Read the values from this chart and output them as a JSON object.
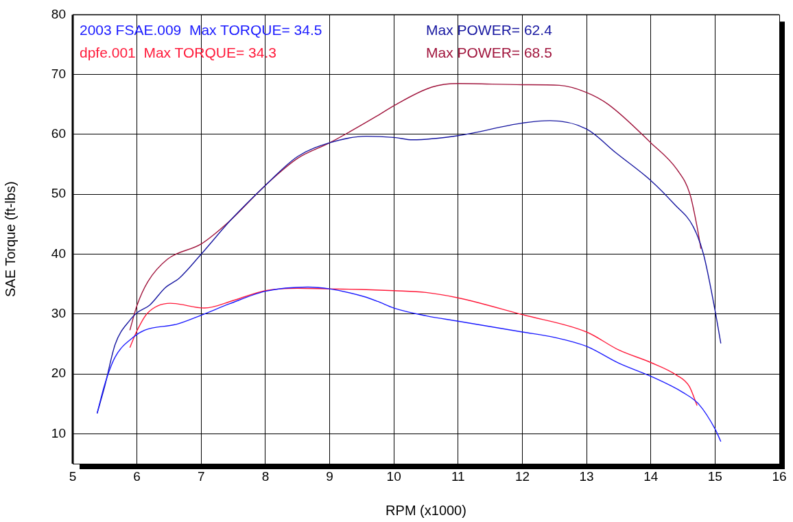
{
  "chart_data": {
    "type": "line",
    "xlabel": "RPM (x1000)",
    "ylabel": "SAE Torque (ft-lbs)",
    "xlim": [
      5,
      16
    ],
    "xticks": [
      5,
      6,
      7,
      8,
      9,
      10,
      11,
      12,
      13,
      14,
      15,
      16
    ],
    "ylim": [
      5,
      80
    ],
    "yticks": [
      10,
      20,
      30,
      40,
      50,
      60,
      70,
      80
    ],
    "grid": true,
    "legend": "top left",
    "marker": "none",
    "line_style": "solid",
    "series": [
      {
        "name": "2003 FSAE.009  Max TORQUE= 34.5",
        "color": "#1a1aff",
        "x": [
          5.38,
          5.5,
          5.66,
          5.94,
          6.12,
          6.62,
          7,
          7.44,
          8,
          8.66,
          9,
          9.54,
          9.75,
          10,
          10.5,
          11,
          12,
          12.5,
          13,
          13.5,
          14,
          14.5,
          14.75,
          15,
          15.09
        ],
        "values": [
          13.4,
          18.3,
          22.8,
          26.1,
          27.3,
          28.3,
          29.8,
          31.7,
          33.8,
          34.5,
          34.2,
          32.9,
          32.1,
          31,
          29.7,
          28.8,
          27,
          26.1,
          24.6,
          21.8,
          19.6,
          16.9,
          14.9,
          10.8,
          8.7
        ]
      },
      {
        "name": "dpfe.001  Max TORQUE= 34.3",
        "color": "#ff1a3a",
        "x": [
          5.89,
          6,
          6.16,
          6.52,
          7.05,
          7.51,
          8,
          8.5,
          9,
          9.5,
          10,
          10.5,
          11,
          12,
          13,
          13.5,
          14,
          14.4,
          14.6,
          14.72
        ],
        "values": [
          24.4,
          27.2,
          30.1,
          31.8,
          31,
          32.3,
          33.9,
          34.3,
          34.2,
          34.1,
          33.9,
          33.6,
          32.7,
          29.9,
          27,
          24,
          21.9,
          19.8,
          17.9,
          14.7
        ]
      },
      {
        "name": "Max POWER= 62.4",
        "color": "#1616a0",
        "x": [
          5.38,
          5.5,
          5.66,
          5.9,
          6,
          6.2,
          6.44,
          6.66,
          7,
          7.46,
          8,
          8.5,
          9,
          9.57,
          10,
          10.29,
          11,
          12,
          12.43,
          13,
          13.46,
          14,
          14.37,
          14.66,
          14.82,
          15,
          15.09
        ],
        "values": [
          13.4,
          18,
          24.9,
          29.1,
          30.2,
          31.5,
          34.4,
          36,
          40,
          45.7,
          51.5,
          56.3,
          58.6,
          59.7,
          59.5,
          59.1,
          59.8,
          61.9,
          62.3,
          60.9,
          56.9,
          52.3,
          48.3,
          44.6,
          40,
          30.6,
          25.1
        ]
      },
      {
        "name": "Max POWER= 68.5",
        "color": "#a0143c",
        "x": [
          5.89,
          6,
          6.17,
          6.48,
          7,
          7.44,
          8,
          8.5,
          9,
          9.74,
          10,
          10.59,
          11,
          12,
          12.58,
          13,
          13.34,
          14,
          14.41,
          14.61,
          14.72,
          14.78
        ],
        "values": [
          27.3,
          31.4,
          35.4,
          39.2,
          41.7,
          45.5,
          51.5,
          56,
          58.6,
          63.1,
          64.8,
          67.9,
          68.5,
          68.3,
          68.2,
          67,
          65,
          58.6,
          54.1,
          50,
          44.6,
          40.9
        ]
      }
    ]
  }
}
